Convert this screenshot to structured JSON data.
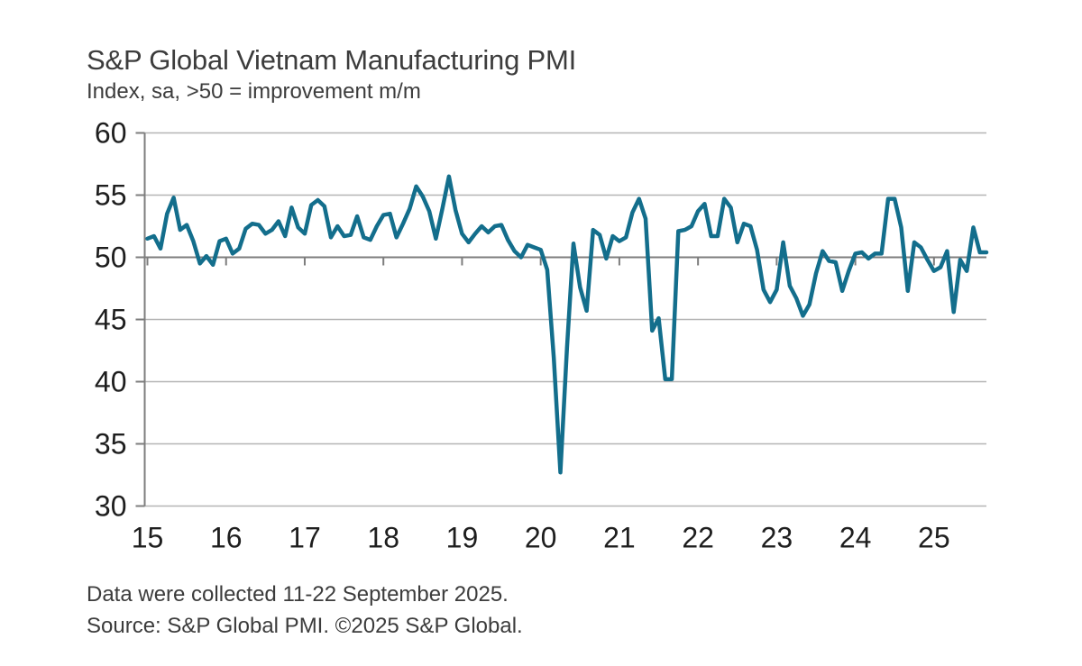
{
  "header": {
    "title": "S&P Global Vietnam Manufacturing PMI",
    "subtitle": "Index, sa, >50 = improvement m/m"
  },
  "footer": {
    "note": "Data were collected 11-22 September 2025.",
    "source": "Source: S&P Global PMI. ©2025 S&P Global."
  },
  "chart_data": {
    "type": "line",
    "title": "S&P Global Vietnam Manufacturing PMI",
    "series_name": "Vietnam Manufacturing PMI (index, sa)",
    "frequency": "monthly",
    "start": "2015-01",
    "end": "2025-09",
    "ylim": [
      30,
      60
    ],
    "y_ticks": [
      30,
      35,
      40,
      45,
      50,
      55,
      60
    ],
    "reference_line": 50,
    "x_tick_labels": [
      "15",
      "16",
      "17",
      "18",
      "19",
      "20",
      "21",
      "22",
      "23",
      "24",
      "25"
    ],
    "x_ticks_every_n_points": 12,
    "grid": "horizontal",
    "legend": "none",
    "values": [
      51.5,
      51.7,
      50.7,
      53.5,
      54.8,
      52.2,
      52.6,
      51.3,
      49.5,
      50.1,
      49.4,
      51.3,
      51.5,
      50.3,
      50.7,
      52.3,
      52.7,
      52.6,
      51.9,
      52.2,
      52.9,
      51.7,
      54.0,
      52.4,
      51.9,
      54.2,
      54.6,
      54.1,
      51.6,
      52.5,
      51.7,
      51.8,
      53.3,
      51.6,
      51.4,
      52.5,
      53.4,
      53.5,
      51.6,
      52.7,
      53.9,
      55.7,
      54.9,
      53.7,
      51.5,
      53.9,
      56.5,
      53.8,
      51.9,
      51.2,
      51.9,
      52.5,
      52.0,
      52.5,
      52.6,
      51.4,
      50.5,
      50.0,
      51.0,
      50.8,
      50.6,
      49.0,
      41.9,
      32.7,
      42.7,
      51.1,
      47.6,
      45.7,
      52.2,
      51.8,
      49.9,
      51.7,
      51.3,
      51.6,
      53.6,
      54.7,
      53.1,
      44.1,
      45.1,
      40.2,
      40.2,
      52.1,
      52.2,
      52.5,
      53.7,
      54.3,
      51.7,
      51.7,
      54.7,
      54.0,
      51.2,
      52.7,
      52.5,
      50.6,
      47.4,
      46.4,
      47.4,
      51.2,
      47.7,
      46.7,
      45.3,
      46.2,
      48.7,
      50.5,
      49.7,
      49.6,
      47.3,
      48.9,
      50.3,
      50.4,
      49.9,
      50.3,
      50.3,
      54.7,
      54.7,
      52.4,
      47.3,
      51.2,
      50.8,
      49.8,
      48.9,
      49.2,
      50.5,
      45.6,
      49.8,
      48.9,
      52.4,
      50.4,
      50.4
    ],
    "colors": {
      "line": "#136e8c",
      "gridline": "#b5b5b5",
      "axis": "#7d7d7d",
      "tick_label": "#1e1e1e",
      "text": "#3c3c3c",
      "background": "#ffffff"
    }
  }
}
